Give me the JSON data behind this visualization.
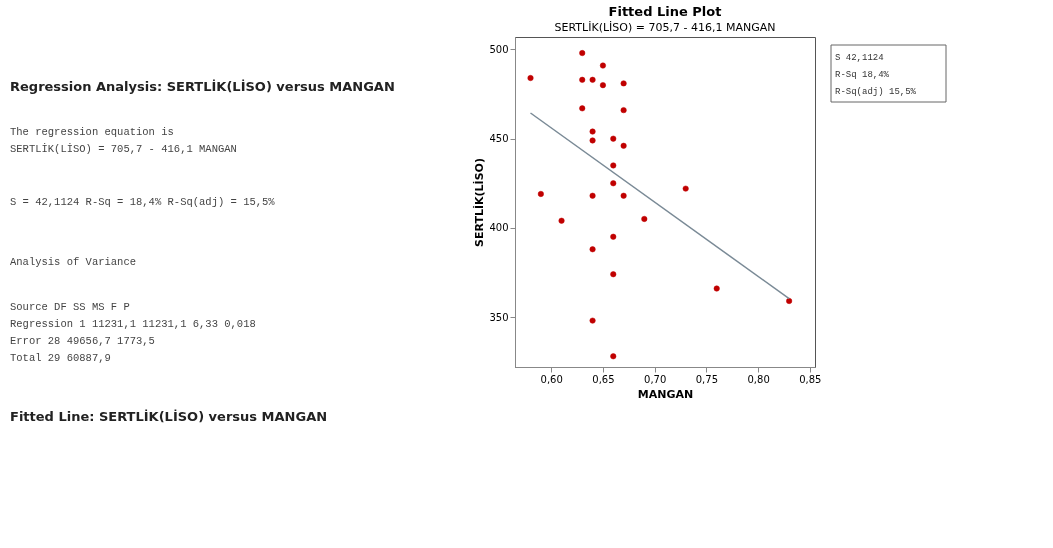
{
  "chart_data": {
    "type": "scatter",
    "title": "Fitted Line Plot",
    "subtitle": "SERTLİK(LİSO) = 705,7 - 416,1 MANGAN",
    "xlabel": "MANGAN",
    "ylabel": "SERTLİK(LİSO)",
    "marker": "circle",
    "xlim": [
      0.565,
      0.855
    ],
    "ylim": [
      322,
      507
    ],
    "xticks": [
      {
        "value": 0.6,
        "label": "0,60"
      },
      {
        "value": 0.65,
        "label": "0,65"
      },
      {
        "value": 0.7,
        "label": "0,70"
      },
      {
        "value": 0.75,
        "label": "0,75"
      },
      {
        "value": 0.8,
        "label": "0,80"
      },
      {
        "value": 0.85,
        "label": "0,85"
      }
    ],
    "yticks": [
      350,
      400,
      450,
      500
    ],
    "series": [
      {
        "type": "scatter",
        "color": "#c00000",
        "x": [
          0.58,
          0.59,
          0.61,
          0.63,
          0.63,
          0.63,
          0.64,
          0.64,
          0.64,
          0.64,
          0.64,
          0.64,
          0.65,
          0.65,
          0.66,
          0.66,
          0.66,
          0.66,
          0.66,
          0.66,
          0.67,
          0.67,
          0.67,
          0.67,
          0.69,
          0.73,
          0.76,
          0.83
        ],
        "values": [
          484,
          419,
          404,
          498,
          483,
          467,
          483,
          454,
          449,
          418,
          388,
          348,
          491,
          480,
          450,
          435,
          425,
          395,
          374,
          328,
          481,
          466,
          446,
          418,
          405,
          422,
          366,
          359
        ]
      },
      {
        "type": "line",
        "marker": "none",
        "color": "#7a8a96",
        "x": [
          0.58,
          0.83
        ],
        "values": [
          464.4,
          360.3
        ]
      }
    ],
    "annotations": [
      "Regression Analysis: SERTLİK(LİSO) versus MANGAN",
      "The regression equation is",
      "SERTLİK(LİSO) = 705,7 - 416,1 MANGAN",
      "S = 42,1124   R-Sq = 18,4%   R-Sq(adj) = 15,5%",
      "Analysis of Variance",
      "Source      DF       SS       MS     F      P",
      "Regression   1  11231,1  11231,1  6,33  0,018",
      "Error       28  49656,7   1773,5",
      "Total       29  60887,9",
      "Fitted Line: SERTLİK(LİSO) versus MANGAN",
      "S          42,1124",
      "R-Sq         18,4%",
      "R-Sq(adj)    15,5%"
    ]
  }
}
